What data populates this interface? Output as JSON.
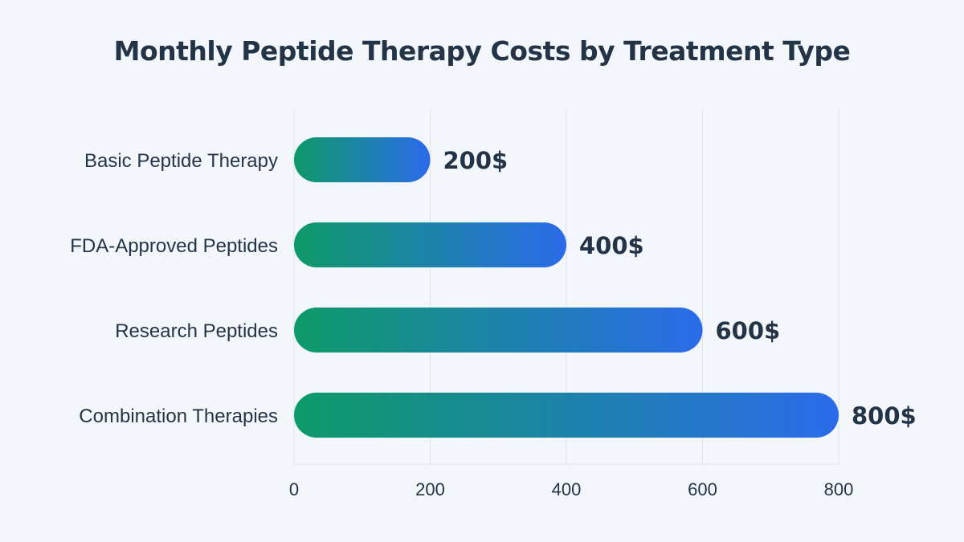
{
  "chart_data": {
    "type": "bar",
    "orientation": "horizontal",
    "title": "Monthly Peptide Therapy Costs by Treatment Type",
    "categories": [
      "Basic Peptide Therapy",
      "FDA-Approved Peptides",
      "Research Peptides",
      "Combination Therapies"
    ],
    "values": [
      200,
      400,
      600,
      800
    ],
    "data_labels": [
      "200$",
      "400$",
      "600$",
      "800$"
    ],
    "xlim": [
      0,
      800
    ],
    "xticks": [
      0,
      200,
      400,
      600,
      800
    ],
    "xlabel": "",
    "ylabel": "",
    "grid": true,
    "colors": {
      "gradient_start": "#0e9a68",
      "gradient_end": "#2b6bea",
      "text": "#243447",
      "grid": "#dde3ea",
      "background": "#f3f7fb"
    }
  }
}
